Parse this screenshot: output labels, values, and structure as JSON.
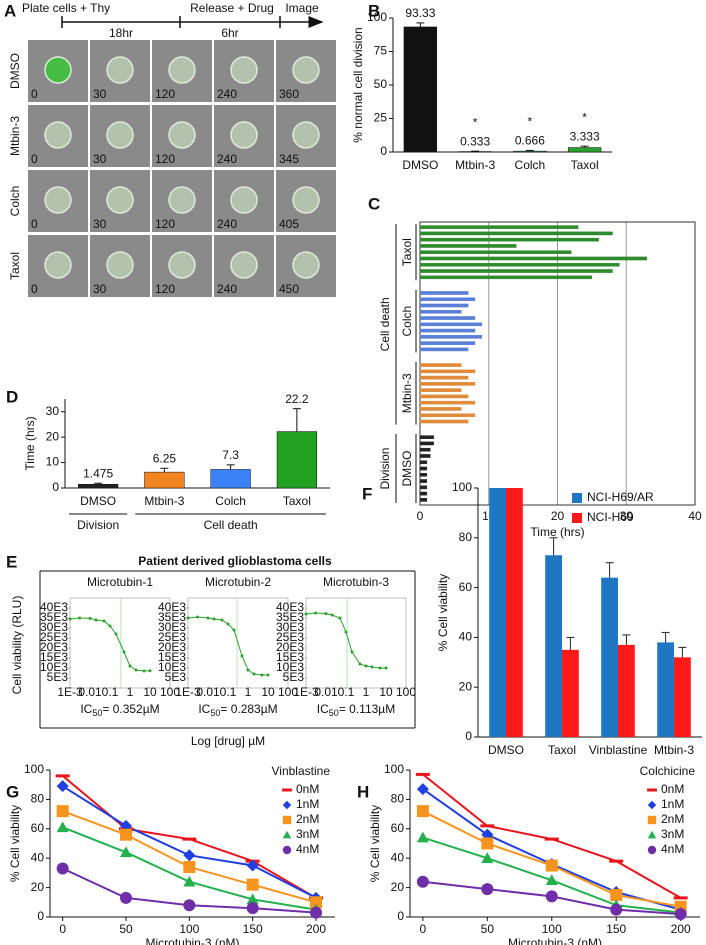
{
  "panel_labels": [
    "A",
    "B",
    "C",
    "D",
    "E",
    "F",
    "G",
    "H"
  ],
  "panel_a": {
    "timeline": [
      "Plate cells + Thy",
      "18hr",
      "Release + Drug",
      "6hr",
      "Image"
    ],
    "rows": [
      {
        "label": "DMSO",
        "times": [
          0,
          30,
          120,
          240,
          360
        ]
      },
      {
        "label": "Mtbin-3",
        "times": [
          0,
          30,
          120,
          240,
          345
        ]
      },
      {
        "label": "Colch",
        "times": [
          0,
          30,
          120,
          240,
          405
        ]
      },
      {
        "label": "Taxol",
        "times": [
          0,
          30,
          120,
          240,
          450
        ]
      }
    ]
  },
  "chart_data": [
    {
      "type": "bar",
      "y_label": "% normal cell division",
      "categories": [
        "DMSO",
        "Mtbin-3",
        "Colch",
        "Taxol"
      ],
      "values": [
        93.33,
        0.333,
        0.666,
        3.333
      ],
      "errors": [
        3,
        0.3,
        0.5,
        1
      ],
      "colors": [
        "#111111",
        "#111111",
        "#2a9d6a",
        "#2ca02c"
      ],
      "significance": [
        null,
        "*",
        "*",
        "*"
      ],
      "ylim": [
        0,
        100
      ],
      "yticks": [
        0,
        25,
        50,
        75,
        100
      ]
    },
    {
      "type": "hbar_groups",
      "x_label": "Time (hrs)",
      "xlim": [
        0,
        40
      ],
      "xticks": [
        0,
        10,
        20,
        30,
        40
      ],
      "grid": true,
      "group_labels": [
        "Cell death",
        "Division"
      ],
      "series": [
        {
          "name": "Taxol",
          "color": "#2e8b2e",
          "values": [
            23,
            28,
            26,
            14,
            22,
            33,
            29,
            28,
            25
          ]
        },
        {
          "name": "Colch",
          "color": "#5b7fd6",
          "values": [
            7,
            8,
            7,
            6,
            8,
            9,
            8,
            9,
            8,
            7
          ]
        },
        {
          "name": "Mtbin-3",
          "color": "#e08a3c",
          "values": [
            6,
            8,
            7,
            8,
            6,
            7,
            8,
            6,
            8,
            7
          ]
        },
        {
          "name": "DMSO",
          "color": "#222222",
          "values": [
            2,
            2,
            1.5,
            1.5,
            1,
            1,
            1,
            1,
            1,
            1,
            1
          ]
        }
      ]
    },
    {
      "type": "bar",
      "y_label": "Time (hrs)",
      "categories": [
        "DMSO",
        "Mtbin-3",
        "Colch",
        "Taxol"
      ],
      "values": [
        1.475,
        6.25,
        7.3,
        22.2
      ],
      "errors": [
        0.4,
        1.5,
        1.8,
        9
      ],
      "colors": [
        "#222222",
        "#f28522",
        "#3b82f6",
        "#22a022"
      ],
      "groups": [
        "Division",
        "Cell death"
      ],
      "ylim": [
        0,
        35
      ],
      "yticks": [
        0,
        10,
        20,
        30
      ]
    },
    {
      "type": "dose_response",
      "title": "Patient derived glioblastoma cells",
      "y_label": "Cell viability (RLU)",
      "x_label": "Log [drug] µM",
      "log_x": true,
      "x": [
        0.001,
        0.003,
        0.01,
        0.02,
        0.05,
        0.1,
        0.2,
        0.5,
        1,
        2,
        5,
        10
      ],
      "xlim": [
        0.001,
        100
      ],
      "xticks": [
        {
          "value": 0.001,
          "label": "1E-3"
        },
        0.01,
        0.1,
        1,
        10,
        100
      ],
      "ylim": [
        0,
        45000
      ],
      "yticks": [
        {
          "value": 5000,
          "label": "5E3"
        },
        {
          "value": 10000,
          "label": "10E3"
        },
        {
          "value": 15000,
          "label": "15E3"
        },
        {
          "value": 20000,
          "label": "20E3"
        },
        {
          "value": 25000,
          "label": "25E3"
        },
        {
          "value": 30000,
          "label": "30E3"
        },
        {
          "value": 35000,
          "label": "35E3"
        },
        {
          "value": 40000,
          "label": "40E3"
        }
      ],
      "color": "#2ca02c",
      "panels": [
        {
          "name": "Microtubin-1",
          "ic50": 0.352,
          "ic50_label": [
            "IC",
            "50",
            "= 0.352µM"
          ],
          "values": [
            34500,
            35000,
            34800,
            34000,
            33500,
            31000,
            27000,
            18000,
            11000,
            9000,
            8500,
            8600
          ]
        },
        {
          "name": "Microtubin-2",
          "ic50": 0.283,
          "ic50_label": [
            "IC",
            "50",
            "= 0.283µM"
          ],
          "values": [
            35000,
            35500,
            35000,
            34500,
            34000,
            32000,
            29000,
            16000,
            9000,
            7000,
            6500,
            6500
          ]
        },
        {
          "name": "Microtubin-3",
          "ic50": 0.113,
          "ic50_label": [
            "IC",
            "50",
            "= 0.113µM"
          ],
          "values": [
            37000,
            37500,
            37200,
            36500,
            35000,
            28000,
            18000,
            12000,
            11000,
            10500,
            10000,
            10000
          ]
        }
      ]
    },
    {
      "type": "grouped_bar",
      "y_label": "% Cell viability",
      "legend": "top-right",
      "categories": [
        "DMSO",
        "Taxol",
        "Vinblastine",
        "Mtbin-3"
      ],
      "series": [
        {
          "name": "NCI-H69/AR",
          "color": "#1f77c4",
          "values": [
            100,
            73,
            64,
            38
          ],
          "errors": [
            null,
            7,
            6,
            4
          ]
        },
        {
          "name": "NCI-H69",
          "color": "#ff1a1a",
          "values": [
            100,
            35,
            37,
            32
          ],
          "errors": [
            null,
            5,
            4,
            4
          ]
        }
      ],
      "ylim": [
        0,
        100
      ],
      "yticks": [
        0,
        20,
        40,
        60,
        80,
        100
      ]
    },
    {
      "type": "line",
      "title": "Vinblastine",
      "x_label": "Microtubin-3 (nM)",
      "y_label": "% Cell viability",
      "legend": "top-right",
      "x": [
        0,
        50,
        100,
        150,
        200
      ],
      "xlim": [
        -10,
        215
      ],
      "xticks": [
        0,
        50,
        100,
        150,
        200
      ],
      "ylim": [
        0,
        100
      ],
      "yticks": [
        0,
        20,
        40,
        60,
        80,
        100
      ],
      "series": [
        {
          "name": "0nM",
          "color": "#e8141c",
          "marker": "dash",
          "values": [
            96,
            60,
            53,
            38,
            13
          ]
        },
        {
          "name": "1nM",
          "color": "#1f3fe0",
          "marker": "diamond",
          "values": [
            89,
            62,
            42,
            35,
            13
          ]
        },
        {
          "name": "2nM",
          "color": "#f7941d",
          "marker": "square",
          "values": [
            72,
            56,
            34,
            22,
            10
          ]
        },
        {
          "name": "3nM",
          "color": "#22b14c",
          "marker": "triangle",
          "values": [
            61,
            44,
            24,
            12,
            5
          ]
        },
        {
          "name": "4nM",
          "color": "#6f2da8",
          "marker": "circle",
          "values": [
            33,
            13,
            8,
            6,
            3
          ]
        }
      ]
    },
    {
      "type": "line",
      "title": "Colchicine",
      "x_label": "Microtubin-3 (nM)",
      "y_label": "% Cell viability",
      "legend": "top-right",
      "x": [
        0,
        50,
        100,
        150,
        200
      ],
      "xlim": [
        -10,
        215
      ],
      "xticks": [
        0,
        50,
        100,
        150,
        200
      ],
      "ylim": [
        0,
        100
      ],
      "yticks": [
        0,
        20,
        40,
        60,
        80,
        100
      ],
      "series": [
        {
          "name": "0nM",
          "color": "#e8141c",
          "marker": "dash",
          "values": [
            97,
            62,
            53,
            38,
            13
          ]
        },
        {
          "name": "1nM",
          "color": "#1f3fe0",
          "marker": "diamond",
          "values": [
            87,
            56,
            36,
            17,
            5
          ]
        },
        {
          "name": "2nM",
          "color": "#f7941d",
          "marker": "square",
          "values": [
            72,
            50,
            35,
            15,
            7
          ]
        },
        {
          "name": "3nM",
          "color": "#22b14c",
          "marker": "triangle",
          "values": [
            54,
            40,
            25,
            8,
            3
          ]
        },
        {
          "name": "4nM",
          "color": "#6f2da8",
          "marker": "circle",
          "values": [
            24,
            19,
            14,
            5,
            2
          ]
        }
      ]
    }
  ]
}
